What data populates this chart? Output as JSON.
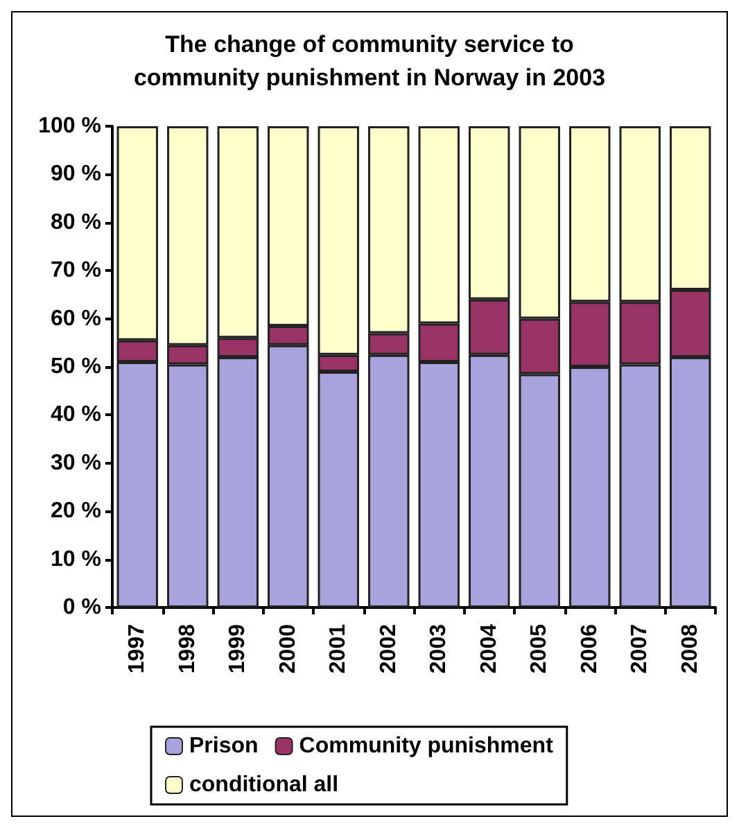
{
  "chart_data": {
    "type": "bar",
    "title": "The change of community service to\ncommunity punishment in Norway in 2003",
    "categories": [
      "1997",
      "1998",
      "1999",
      "2000",
      "2001",
      "2002",
      "2003",
      "2004",
      "2005",
      "2006",
      "2007",
      "2008"
    ],
    "stacked": true,
    "series": [
      {
        "name": "Prison",
        "color": "#a9a3dd",
        "values": [
          51,
          50.5,
          52,
          54.5,
          49,
          52.5,
          51,
          52.5,
          48.5,
          50,
          50.5,
          52
        ]
      },
      {
        "name": "Community punishment",
        "color": "#993366",
        "values": [
          4.5,
          4,
          4,
          4,
          3.5,
          4.5,
          8,
          11.5,
          11.5,
          13.5,
          13,
          14
        ]
      },
      {
        "name": "conditional all",
        "color": "#ffffcc",
        "values": [
          44.5,
          45.5,
          44,
          41.5,
          47.5,
          43,
          41,
          36,
          40,
          36.5,
          36.5,
          34
        ]
      }
    ],
    "ylim": [
      0,
      100
    ],
    "yticks": [
      {
        "value": 0,
        "label": "0 %"
      },
      {
        "value": 10,
        "label": "10 %"
      },
      {
        "value": 20,
        "label": "20 %"
      },
      {
        "value": 30,
        "label": "30 %"
      },
      {
        "value": 40,
        "label": "40 %"
      },
      {
        "value": 50,
        "label": "50 %"
      },
      {
        "value": 60,
        "label": "60 %"
      },
      {
        "value": 70,
        "label": "70 %"
      },
      {
        "value": 80,
        "label": "80 %"
      },
      {
        "value": 90,
        "label": "90 %"
      },
      {
        "value": 100,
        "label": "100 %"
      }
    ],
    "grid": false,
    "legend": "bottom"
  }
}
